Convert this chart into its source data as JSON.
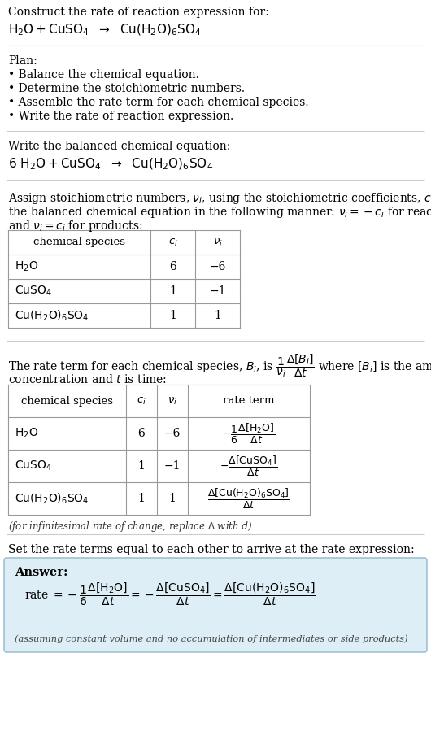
{
  "bg_color": "#ffffff",
  "text_color": "#000000",
  "answer_bg": "#ddeef6",
  "answer_border": "#90b8cc",
  "line_color": "#bbbbbb",
  "sections": {
    "section1_title": "Construct the rate of reaction expression for:",
    "section1_eq": "H₂O + CuSO₄  →  Cu(H₂O)₆SO₄",
    "section2_header": "Plan:",
    "section2_items": [
      "• Balance the chemical equation.",
      "• Determine the stoichiometric numbers.",
      "• Assemble the rate term for each chemical species.",
      "• Write the rate of reaction expression."
    ],
    "section3_header": "Write the balanced chemical equation:",
    "section3_eq": "6 H₂O + CuSO₄  →  Cu(H₂O)₆SO₄",
    "section4_para1": "Assign stoichiometric numbers, ν_i, using the stoichiometric coefficients, c_i, from",
    "section4_para2": "the balanced chemical equation in the following manner: ν_i = −c_i for reactants",
    "section4_para3": "and ν_i = c_i for products:",
    "table1": {
      "headers": [
        "chemical species",
        "c_i",
        "ν_i"
      ],
      "rows": [
        [
          "H₂O",
          "6",
          "−6"
        ],
        [
          "CuSO₄",
          "1",
          "−1"
        ],
        [
          "Cu(H₂O)₆SO₄",
          "1",
          "1"
        ]
      ]
    },
    "section5_para1": "The rate term for each chemical species, B_i, is (1/ν_i)(Δ[B_i]/Δt) where [B_i] is the amount",
    "section5_para2": "concentration and t is time:",
    "table2": {
      "headers": [
        "chemical species",
        "c_i",
        "ν_i",
        "rate term"
      ],
      "rows": [
        [
          "H₂O",
          "6",
          "−6",
          "-1/6 Δ[H₂O]/Δt"
        ],
        [
          "CuSO₄",
          "1",
          "−1",
          "-Δ[CuSO₄]/Δt"
        ],
        [
          "Cu(H₂O)₆SO₄",
          "1",
          "1",
          "Δ[Cu(H₂O)₆SO₄]/Δt"
        ]
      ]
    },
    "section5_footnote": "(for infinitesimal rate of change, replace Δ with d)",
    "section6_header": "Set the rate terms equal to each other to arrive at the rate expression:",
    "answer_label": "Answer:",
    "answer_footnote": "(assuming constant volume and no accumulation of intermediates or side products)"
  }
}
